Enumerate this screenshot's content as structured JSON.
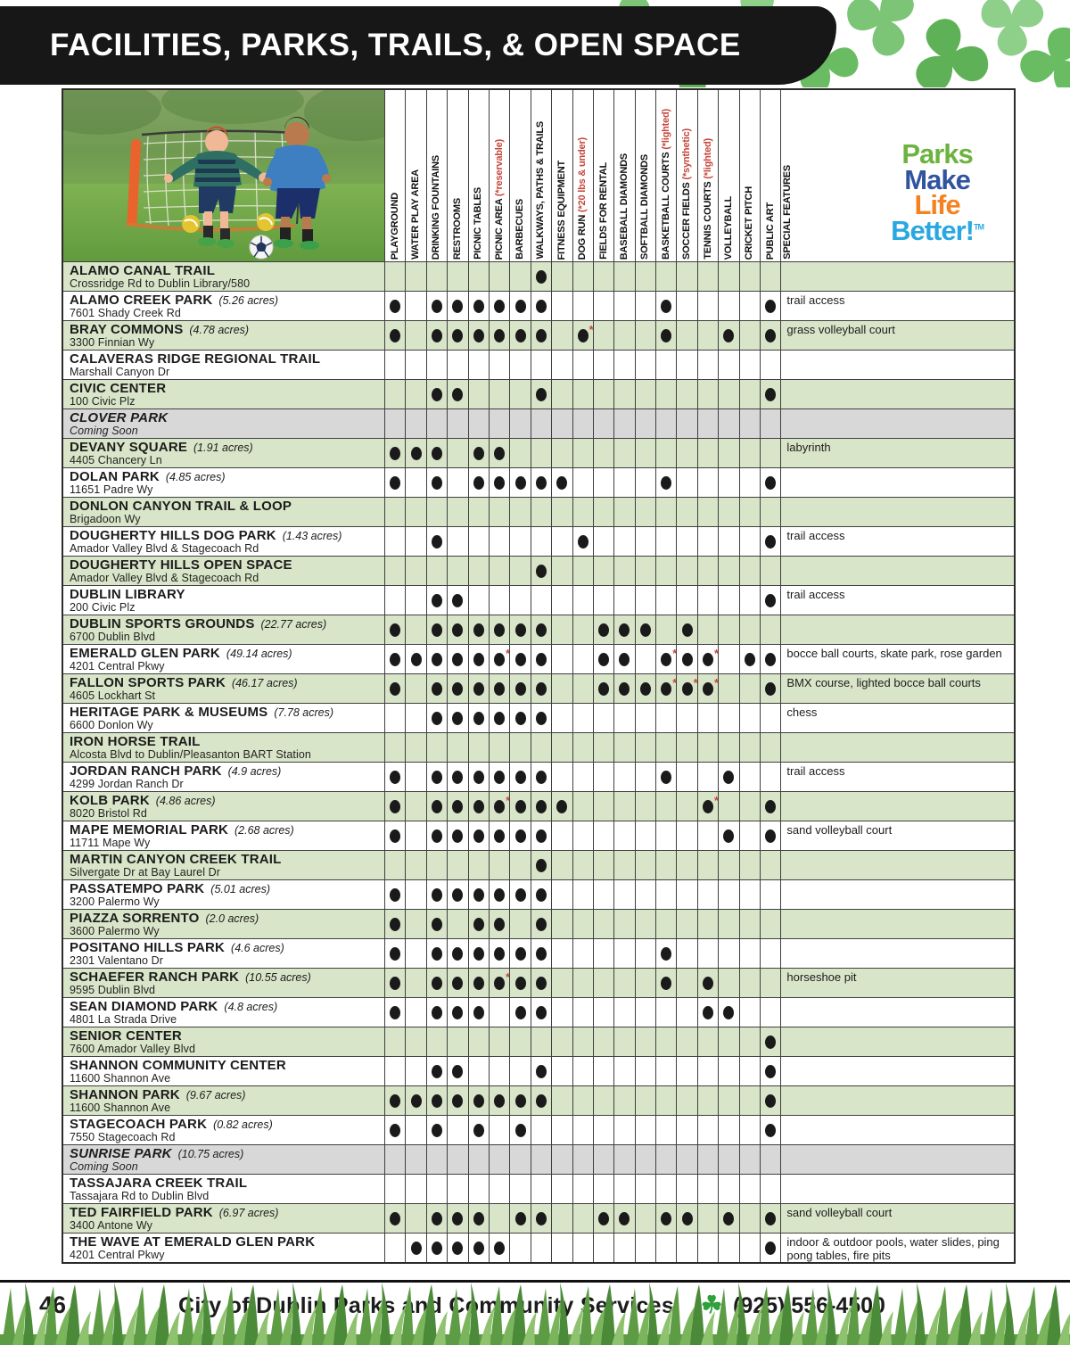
{
  "page": {
    "title": "FACILITIES, PARKS, TRAILS, & OPEN SPACE",
    "page_number": "46",
    "footer_org": "City of Dublin Parks and Community Services",
    "footer_phone": "(925) 556-4500",
    "footer_clover_icon": "☘"
  },
  "colors": {
    "row_green": "#d9e5c8",
    "row_gray": "#d8d8d8",
    "accent_red": "#c5473c",
    "banner_black": "#171717",
    "clover_green": "#2fa03c"
  },
  "logo": {
    "tm": "TM",
    "lines": [
      {
        "text": "Parks",
        "color": "#6cb33f"
      },
      {
        "text": "Make",
        "color": "#30549f"
      },
      {
        "text": "Life",
        "color": "#f58220"
      },
      {
        "text": "Better!",
        "color": "#29a8e0"
      }
    ]
  },
  "columns": [
    {
      "label": "PLAYGROUND"
    },
    {
      "label": "WATER PLAY AREA"
    },
    {
      "label": "DRINKING FOUNTAINS"
    },
    {
      "label": "RESTROOMS"
    },
    {
      "label": "PICNIC TABLES"
    },
    {
      "label": "PICNIC AREA ",
      "red": "(*reservable)"
    },
    {
      "label": "BARBECUES"
    },
    {
      "label": "WALKWAYS, PATHS & TRAILS"
    },
    {
      "label": "FITNESS EQUIPMENT"
    },
    {
      "label": "DOG RUN ",
      "red": "(*20 lbs & under)"
    },
    {
      "label": "FIELDS FOR RENTAL"
    },
    {
      "label": "BASEBALL DIAMONDS"
    },
    {
      "label": "SOFTBALL DIAMONDS"
    },
    {
      "label": "BASKETBALL COURTS ",
      "red": "(*lighted)"
    },
    {
      "label": "SOCCER FIELDS ",
      "red": "(*synthetic)"
    },
    {
      "label": "TENNIS COURTS ",
      "red": "(*lighted)"
    },
    {
      "label": "VOLLEYBALL"
    },
    {
      "label": "CRICKET PITCH"
    },
    {
      "label": "PUBLIC ART"
    }
  ],
  "special_column_label": "SPECIAL FEATURES",
  "rows": [
    {
      "name": "ALAMO CANAL TRAIL",
      "acres": "",
      "address": "Crossridge Rd to Dublin Library/580",
      "special": "",
      "dots": [
        8
      ],
      "starred": [],
      "bg": "green"
    },
    {
      "name": "ALAMO CREEK PARK",
      "acres": "(5.26 acres)",
      "address": "7601 Shady Creek Rd",
      "special": "trail access",
      "dots": [
        1,
        3,
        4,
        5,
        6,
        7,
        8,
        14,
        19
      ],
      "starred": [],
      "bg": "white"
    },
    {
      "name": "BRAY COMMONS",
      "acres": "(4.78 acres)",
      "address": "3300 Finnian Wy",
      "special": "grass volleyball court",
      "dots": [
        1,
        3,
        4,
        5,
        6,
        7,
        8,
        10,
        14,
        17,
        19
      ],
      "starred": [
        10
      ],
      "bg": "green"
    },
    {
      "name": "CALAVERAS RIDGE REGIONAL TRAIL",
      "acres": "",
      "address": "Marshall Canyon Dr",
      "special": "",
      "dots": [],
      "starred": [],
      "bg": "white"
    },
    {
      "name": "CIVIC CENTER",
      "acres": "",
      "address": "100 Civic Plz",
      "special": "",
      "dots": [
        3,
        4,
        8,
        19
      ],
      "starred": [],
      "bg": "green"
    },
    {
      "name": "CLOVER PARK",
      "acres": "",
      "address": "Coming Soon",
      "special": "",
      "dots": [],
      "starred": [],
      "bg": "gray"
    },
    {
      "name": "DEVANY SQUARE",
      "acres": "(1.91 acres)",
      "address": "4405 Chancery Ln",
      "special": "labyrinth",
      "dots": [
        1,
        2,
        3,
        5,
        6
      ],
      "starred": [],
      "bg": "green"
    },
    {
      "name": "DOLAN PARK",
      "acres": "(4.85 acres)",
      "address": "11651 Padre Wy",
      "special": "",
      "dots": [
        1,
        3,
        5,
        6,
        7,
        8,
        9,
        14,
        19
      ],
      "starred": [],
      "bg": "white"
    },
    {
      "name": "DONLON CANYON TRAIL & LOOP",
      "acres": "",
      "address": "Brigadoon Wy",
      "special": "",
      "dots": [],
      "starred": [],
      "bg": "green"
    },
    {
      "name": "DOUGHERTY HILLS DOG PARK",
      "acres": "(1.43 acres)",
      "address": "Amador Valley Blvd & Stagecoach Rd",
      "special": "trail access",
      "dots": [
        3,
        10,
        19
      ],
      "starred": [],
      "bg": "white"
    },
    {
      "name": "DOUGHERTY HILLS OPEN SPACE",
      "acres": "",
      "address": "Amador Valley Blvd & Stagecoach Rd",
      "special": "",
      "dots": [
        8
      ],
      "starred": [],
      "bg": "green"
    },
    {
      "name": "DUBLIN LIBRARY",
      "acres": "",
      "address": "200 Civic Plz",
      "special": "trail access",
      "dots": [
        3,
        4,
        19
      ],
      "starred": [],
      "bg": "white"
    },
    {
      "name": "DUBLIN SPORTS GROUNDS",
      "acres": "(22.77 acres)",
      "address": "6700 Dublin Blvd",
      "special": "",
      "dots": [
        1,
        3,
        4,
        5,
        6,
        7,
        8,
        11,
        12,
        13,
        15
      ],
      "starred": [],
      "bg": "green"
    },
    {
      "name": "EMERALD GLEN PARK",
      "acres": "(49.14 acres)",
      "address": "4201 Central Pkwy",
      "special": "bocce ball courts, skate park, rose garden",
      "dots": [
        1,
        2,
        3,
        4,
        5,
        6,
        7,
        8,
        11,
        12,
        14,
        15,
        16,
        18,
        19
      ],
      "starred": [
        6,
        14,
        16
      ],
      "bg": "white"
    },
    {
      "name": "FALLON SPORTS PARK",
      "acres": "(46.17 acres)",
      "address": "4605 Lockhart St",
      "special": "BMX course, lighted bocce ball courts",
      "dots": [
        1,
        3,
        4,
        5,
        6,
        7,
        8,
        11,
        12,
        13,
        14,
        15,
        16,
        19
      ],
      "starred": [
        14,
        15,
        16
      ],
      "bg": "green"
    },
    {
      "name": "HERITAGE PARK & MUSEUMS",
      "acres": "(7.78 acres)",
      "address": "6600 Donlon Wy",
      "special": "chess",
      "dots": [
        3,
        4,
        5,
        6,
        7,
        8
      ],
      "starred": [],
      "bg": "white"
    },
    {
      "name": "IRON HORSE TRAIL",
      "acres": "",
      "address": "Alcosta Blvd to Dublin/Pleasanton BART Station",
      "special": "",
      "dots": [],
      "starred": [],
      "bg": "green"
    },
    {
      "name": "JORDAN RANCH PARK",
      "acres": "(4.9 acres)",
      "address": "4299 Jordan Ranch Dr",
      "special": "trail access",
      "dots": [
        1,
        3,
        4,
        5,
        6,
        7,
        8,
        14,
        17
      ],
      "starred": [],
      "bg": "white"
    },
    {
      "name": "KOLB PARK",
      "acres": "(4.86 acres)",
      "address": "8020 Bristol Rd",
      "special": "",
      "dots": [
        1,
        3,
        4,
        5,
        6,
        7,
        8,
        9,
        16,
        19
      ],
      "starred": [
        6,
        16
      ],
      "bg": "green"
    },
    {
      "name": "MAPE MEMORIAL PARK",
      "acres": "(2.68 acres)",
      "address": "11711 Mape Wy",
      "special": "sand volleyball court",
      "dots": [
        1,
        3,
        4,
        5,
        6,
        7,
        8,
        17,
        19
      ],
      "starred": [],
      "bg": "white"
    },
    {
      "name": "MARTIN CANYON CREEK TRAIL",
      "acres": "",
      "address": "Silvergate Dr at Bay Laurel Dr",
      "special": "",
      "dots": [
        8
      ],
      "starred": [],
      "bg": "green"
    },
    {
      "name": "PASSATEMPO PARK",
      "acres": "(5.01 acres)",
      "address": "3200 Palermo Wy",
      "special": "",
      "dots": [
        1,
        3,
        4,
        5,
        6,
        7,
        8
      ],
      "starred": [],
      "bg": "white"
    },
    {
      "name": "PIAZZA SORRENTO",
      "acres": "(2.0 acres)",
      "address": "3600 Palermo Wy",
      "special": "",
      "dots": [
        1,
        3,
        5,
        6,
        8
      ],
      "starred": [],
      "bg": "green"
    },
    {
      "name": "POSITANO HILLS PARK",
      "acres": "(4.6 acres)",
      "address": "2301 Valentano Dr",
      "special": "",
      "dots": [
        1,
        3,
        4,
        5,
        6,
        7,
        8,
        14
      ],
      "starred": [],
      "bg": "white"
    },
    {
      "name": "SCHAEFER RANCH PARK",
      "acres": "(10.55 acres)",
      "address": "9595 Dublin Blvd",
      "special": "horseshoe pit",
      "dots": [
        1,
        3,
        4,
        5,
        6,
        7,
        8,
        14,
        16
      ],
      "starred": [
        6
      ],
      "bg": "green"
    },
    {
      "name": "SEAN DIAMOND PARK",
      "acres": "(4.8 acres)",
      "address": "4801 La Strada Drive",
      "special": "",
      "dots": [
        1,
        3,
        4,
        5,
        7,
        8,
        16,
        17
      ],
      "starred": [],
      "bg": "white"
    },
    {
      "name": "SENIOR CENTER",
      "acres": "",
      "address": "7600 Amador Valley Blvd",
      "special": "",
      "dots": [
        19
      ],
      "starred": [],
      "bg": "green"
    },
    {
      "name": "SHANNON COMMUNITY CENTER",
      "acres": "",
      "address": "11600 Shannon Ave",
      "special": "",
      "dots": [
        3,
        4,
        8,
        19
      ],
      "starred": [],
      "bg": "white"
    },
    {
      "name": "SHANNON PARK",
      "acres": "(9.67 acres)",
      "address": "11600 Shannon Ave",
      "special": "",
      "dots": [
        1,
        2,
        3,
        4,
        5,
        6,
        7,
        8,
        19
      ],
      "starred": [],
      "bg": "green"
    },
    {
      "name": "STAGECOACH PARK",
      "acres": "(0.82 acres)",
      "address": "7550 Stagecoach Rd",
      "special": "",
      "dots": [
        1,
        3,
        5,
        7,
        19
      ],
      "starred": [],
      "bg": "white"
    },
    {
      "name": "SUNRISE PARK",
      "acres": "(10.75 acres)",
      "address": "Coming Soon",
      "special": "",
      "dots": [],
      "starred": [],
      "bg": "gray"
    },
    {
      "name": "TASSAJARA CREEK TRAIL",
      "acres": "",
      "address": "Tassajara Rd to Dublin Blvd",
      "special": "",
      "dots": [],
      "starred": [],
      "bg": "white"
    },
    {
      "name": "TED FAIRFIELD PARK",
      "acres": "(6.97 acres)",
      "address": "3400 Antone Wy",
      "special": "sand volleyball court",
      "dots": [
        1,
        3,
        4,
        5,
        7,
        8,
        11,
        12,
        14,
        15,
        17,
        19
      ],
      "starred": [],
      "bg": "green"
    },
    {
      "name": "THE WAVE AT EMERALD GLEN PARK",
      "acres": "",
      "address": "4201 Central Pkwy",
      "special": "indoor & outdoor pools, water slides, ping pong tables, fire pits",
      "dots": [
        2,
        3,
        4,
        5,
        6,
        19
      ],
      "starred": [],
      "bg": "white"
    }
  ]
}
